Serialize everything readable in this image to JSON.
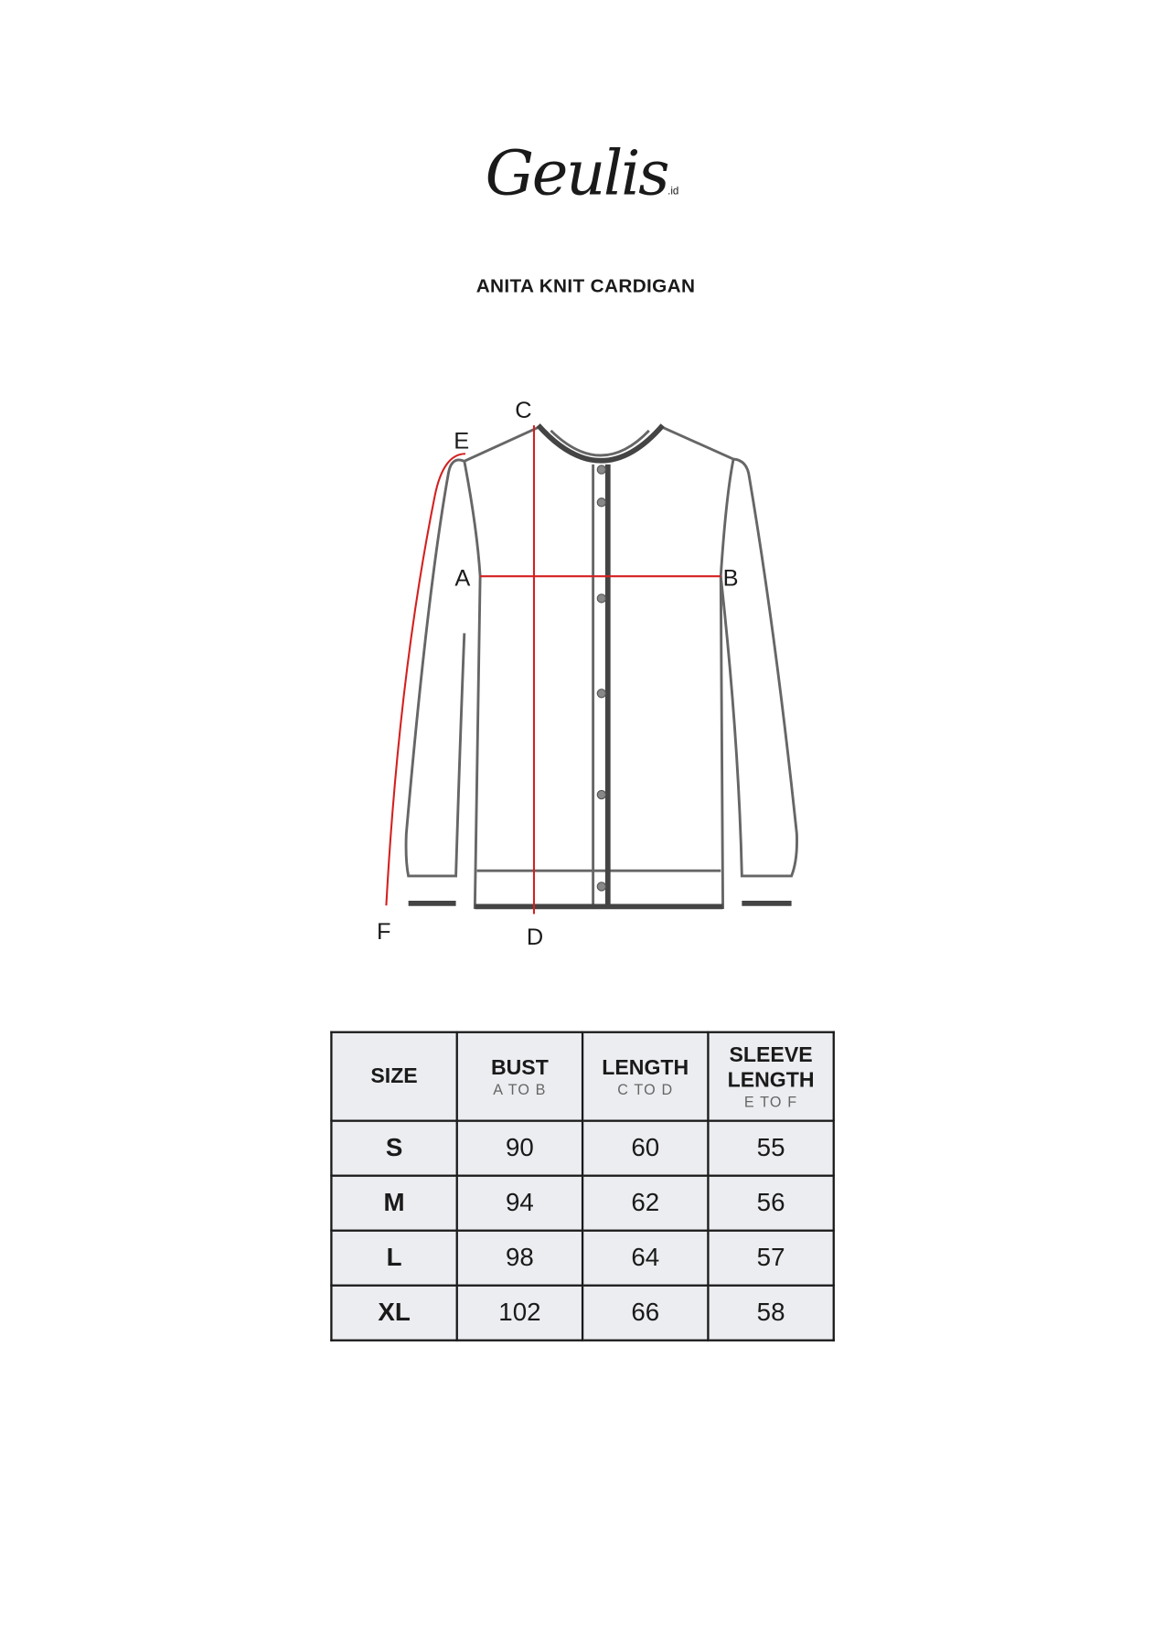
{
  "brand": {
    "name": "Geulis",
    "suffix": ".id"
  },
  "title": "ANITA KNIT CARDIGAN",
  "diagram": {
    "labels": {
      "a": "A",
      "b": "B",
      "c": "C",
      "d": "D",
      "e": "E",
      "f": "F"
    },
    "measure_color": "#d42020",
    "outline_color": "#666666"
  },
  "table": {
    "headers": [
      {
        "label": "SIZE",
        "sub": ""
      },
      {
        "label": "BUST",
        "sub": "A TO B"
      },
      {
        "label": "LENGTH",
        "sub": "C TO D"
      },
      {
        "label": "SLEEVE LENGTH",
        "sub": "E TO F"
      }
    ],
    "rows": [
      [
        "S",
        "90",
        "60",
        "55"
      ],
      [
        "M",
        "94",
        "62",
        "56"
      ],
      [
        "L",
        "98",
        "64",
        "57"
      ],
      [
        "XL",
        "102",
        "66",
        "58"
      ]
    ]
  }
}
